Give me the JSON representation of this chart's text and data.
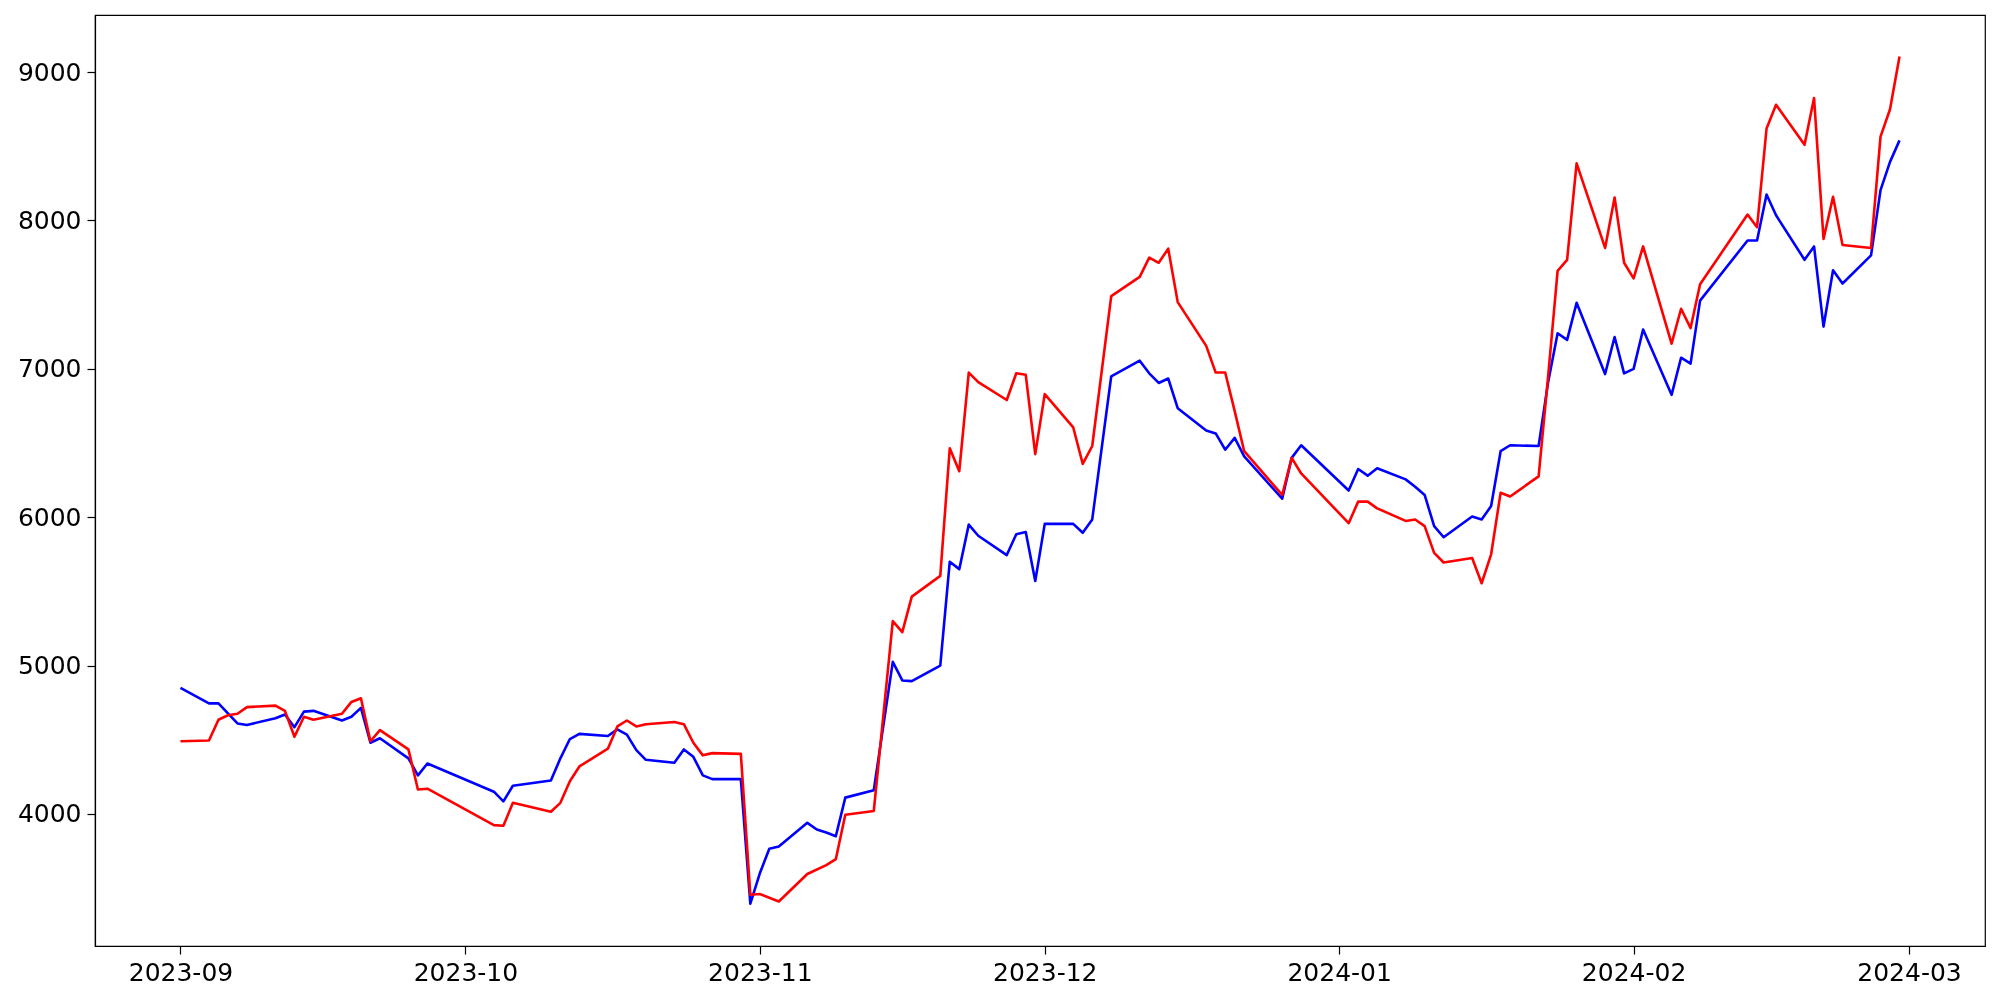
{
  "chart_data": {
    "type": "line",
    "xlim": [
      "2023-08-23",
      "2024-03-09"
    ],
    "xticks": [
      "2023-09",
      "2023-10",
      "2023-11",
      "2023-12",
      "2024-01",
      "2024-02",
      "2024-03"
    ],
    "ylim": [
      3110,
      9385
    ],
    "yticks": [
      4000,
      5000,
      6000,
      7000,
      8000,
      9000
    ],
    "series": [
      {
        "color": "#0000ff",
        "x": [
          "2023-09-01",
          "2023-09-04",
          "2023-09-05",
          "2023-09-07",
          "2023-09-08",
          "2023-09-11",
          "2023-09-12",
          "2023-09-13",
          "2023-09-14",
          "2023-09-15",
          "2023-09-18",
          "2023-09-19",
          "2023-09-20",
          "2023-09-21",
          "2023-09-22",
          "2023-09-25",
          "2023-09-26",
          "2023-09-27",
          "2023-10-04",
          "2023-10-05",
          "2023-10-06",
          "2023-10-10",
          "2023-10-11",
          "2023-10-12",
          "2023-10-13",
          "2023-10-16",
          "2023-10-17",
          "2023-10-18",
          "2023-10-19",
          "2023-10-20",
          "2023-10-23",
          "2023-10-24",
          "2023-10-25",
          "2023-10-26",
          "2023-10-27",
          "2023-10-30",
          "2023-10-31",
          "2023-11-01",
          "2023-11-02",
          "2023-11-03",
          "2023-11-06",
          "2023-11-07",
          "2023-11-08",
          "2023-11-09",
          "2023-11-10",
          "2023-11-13",
          "2023-11-15",
          "2023-11-16",
          "2023-11-17",
          "2023-11-20",
          "2023-11-21",
          "2023-11-22",
          "2023-11-23",
          "2023-11-24",
          "2023-11-27",
          "2023-11-28",
          "2023-11-29",
          "2023-11-30",
          "2023-12-01",
          "2023-12-04",
          "2023-12-05",
          "2023-12-06",
          "2023-12-08",
          "2023-12-11",
          "2023-12-12",
          "2023-12-13",
          "2023-12-14",
          "2023-12-15",
          "2023-12-18",
          "2023-12-19",
          "2023-12-20",
          "2023-12-21",
          "2023-12-22",
          "2023-12-26",
          "2023-12-27",
          "2023-12-28",
          "2024-01-02",
          "2024-01-03",
          "2024-01-04",
          "2024-01-05",
          "2024-01-08",
          "2024-01-09",
          "2024-01-10",
          "2024-01-11",
          "2024-01-12",
          "2024-01-15",
          "2024-01-16",
          "2024-01-17",
          "2024-01-18",
          "2024-01-19",
          "2024-01-22",
          "2024-01-23",
          "2024-01-24",
          "2024-01-25",
          "2024-01-26",
          "2024-01-29",
          "2024-01-30",
          "2024-01-31",
          "2024-02-01",
          "2024-02-02",
          "2024-02-05",
          "2024-02-06",
          "2024-02-07",
          "2024-02-08",
          "2024-02-13",
          "2024-02-14",
          "2024-02-15",
          "2024-02-16",
          "2024-02-19",
          "2024-02-20",
          "2024-02-21",
          "2024-02-22",
          "2024-02-23",
          "2024-02-26",
          "2024-02-27",
          "2024-02-28",
          "2024-02-29"
        ],
        "values": [
          4850,
          4745,
          4745,
          4610,
          4600,
          4645,
          4670,
          4585,
          4690,
          4695,
          4630,
          4655,
          4715,
          4480,
          4510,
          4375,
          4260,
          4340,
          4150,
          4085,
          4190,
          4225,
          4375,
          4505,
          4540,
          4525,
          4570,
          4535,
          4430,
          4365,
          4345,
          4435,
          4385,
          4260,
          4235,
          4235,
          3395,
          3600,
          3765,
          3780,
          3940,
          3895,
          3875,
          3850,
          4110,
          4160,
          5025,
          4900,
          4895,
          5000,
          5700,
          5650,
          5950,
          5875,
          5745,
          5885,
          5900,
          5570,
          5955,
          5955,
          5895,
          5985,
          6950,
          7055,
          6970,
          6905,
          6935,
          6735,
          6585,
          6565,
          6455,
          6535,
          6410,
          6125,
          6400,
          6485,
          6180,
          6325,
          6280,
          6330,
          6255,
          6205,
          6150,
          5940,
          5865,
          6005,
          5985,
          6075,
          6445,
          6485,
          6480,
          6910,
          7240,
          7195,
          7445,
          6965,
          7215,
          6970,
          7000,
          7265,
          6825,
          7075,
          7035,
          7460,
          7865,
          7865,
          8175,
          8035,
          7735,
          7825,
          7285,
          7665,
          7575,
          7765,
          8205,
          8395,
          8540
        ]
      },
      {
        "color": "#ff0000",
        "x": [
          "2023-09-01",
          "2023-09-04",
          "2023-09-05",
          "2023-09-06",
          "2023-09-07",
          "2023-09-08",
          "2023-09-11",
          "2023-09-12",
          "2023-09-13",
          "2023-09-14",
          "2023-09-15",
          "2023-09-18",
          "2023-09-19",
          "2023-09-20",
          "2023-09-21",
          "2023-09-22",
          "2023-09-25",
          "2023-09-26",
          "2023-09-27",
          "2023-10-04",
          "2023-10-05",
          "2023-10-06",
          "2023-10-10",
          "2023-10-11",
          "2023-10-12",
          "2023-10-13",
          "2023-10-16",
          "2023-10-17",
          "2023-10-18",
          "2023-10-19",
          "2023-10-20",
          "2023-10-23",
          "2023-10-24",
          "2023-10-25",
          "2023-10-26",
          "2023-10-27",
          "2023-10-30",
          "2023-10-31",
          "2023-11-01",
          "2023-11-03",
          "2023-11-06",
          "2023-11-08",
          "2023-11-09",
          "2023-11-10",
          "2023-11-13",
          "2023-11-15",
          "2023-11-16",
          "2023-11-17",
          "2023-11-20",
          "2023-11-21",
          "2023-11-22",
          "2023-11-23",
          "2023-11-24",
          "2023-11-27",
          "2023-11-28",
          "2023-11-29",
          "2023-11-30",
          "2023-12-01",
          "2023-12-04",
          "2023-12-05",
          "2023-12-06",
          "2023-12-08",
          "2023-12-11",
          "2023-12-12",
          "2023-12-13",
          "2023-12-14",
          "2023-12-15",
          "2023-12-18",
          "2023-12-19",
          "2023-12-20",
          "2023-12-21",
          "2023-12-22",
          "2023-12-26",
          "2023-12-27",
          "2023-12-28",
          "2024-01-02",
          "2024-01-03",
          "2024-01-04",
          "2024-01-05",
          "2024-01-08",
          "2024-01-09",
          "2024-01-10",
          "2024-01-11",
          "2024-01-12",
          "2024-01-15",
          "2024-01-16",
          "2024-01-17",
          "2024-01-18",
          "2024-01-19",
          "2024-01-22",
          "2024-01-23",
          "2024-01-24",
          "2024-01-25",
          "2024-01-26",
          "2024-01-29",
          "2024-01-30",
          "2024-01-31",
          "2024-02-01",
          "2024-02-02",
          "2024-02-05",
          "2024-02-06",
          "2024-02-07",
          "2024-02-08",
          "2024-02-13",
          "2024-02-14",
          "2024-02-15",
          "2024-02-16",
          "2024-02-19",
          "2024-02-20",
          "2024-02-21",
          "2024-02-22",
          "2024-02-23",
          "2024-02-26",
          "2024-02-27",
          "2024-02-28",
          "2024-02-29"
        ],
        "values": [
          4490,
          4495,
          4635,
          4665,
          4675,
          4720,
          4730,
          4695,
          4520,
          4655,
          4635,
          4675,
          4755,
          4780,
          4490,
          4565,
          4435,
          4165,
          4170,
          3925,
          3920,
          4075,
          4015,
          4075,
          4220,
          4320,
          4440,
          4590,
          4630,
          4590,
          4605,
          4620,
          4605,
          4480,
          4395,
          4410,
          4405,
          3455,
          3460,
          3410,
          3595,
          3655,
          3695,
          3995,
          4020,
          5300,
          5225,
          5465,
          5605,
          6465,
          6310,
          6975,
          6910,
          6790,
          6970,
          6960,
          6425,
          6830,
          6605,
          6360,
          6480,
          7490,
          7620,
          7750,
          7715,
          7810,
          7450,
          7155,
          6975,
          6975,
          6715,
          6445,
          6150,
          6400,
          6295,
          5960,
          6105,
          6105,
          6060,
          5975,
          5985,
          5940,
          5760,
          5695,
          5725,
          5555,
          5750,
          6165,
          6140,
          6275,
          6950,
          7660,
          7735,
          8385,
          7815,
          8155,
          7715,
          7610,
          7825,
          7170,
          7405,
          7275,
          7570,
          8040,
          7955,
          8620,
          8780,
          8510,
          8825,
          7875,
          8160,
          7835,
          7815,
          8565,
          8750,
          9105
        ]
      }
    ]
  }
}
